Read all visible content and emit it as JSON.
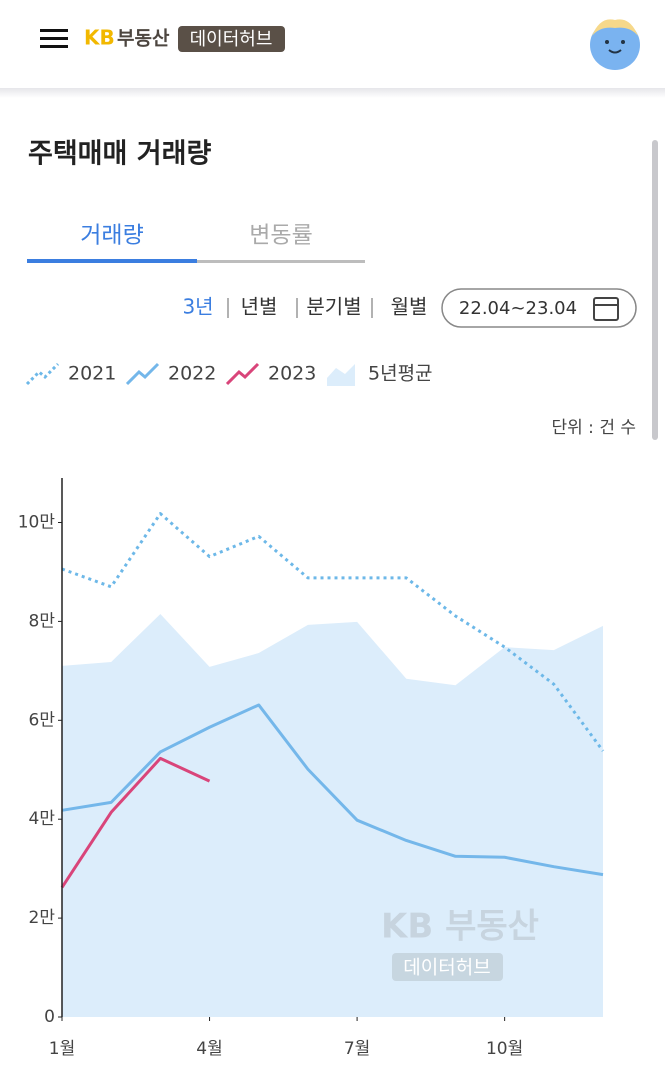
{
  "header": {
    "logo_kb": "KB",
    "logo_name": "부동산",
    "logo_badge": "데이터허브"
  },
  "title": "주택매매 거래량",
  "tabs": [
    "거래량",
    "변동률"
  ],
  "active_tab": 0,
  "periods": [
    "3년",
    "년별",
    "분기별",
    "월별"
  ],
  "active_period": 0,
  "date_range": "22.04~23.04",
  "unit": "단위 : 건 수",
  "chart_data": {
    "type": "line",
    "x": [
      1,
      2,
      3,
      4,
      5,
      6,
      7,
      8,
      9,
      10,
      11,
      12
    ],
    "xlim": [
      1,
      12
    ],
    "xticks": [
      {
        "value": 1,
        "label": "1월"
      },
      {
        "value": 4,
        "label": "4월"
      },
      {
        "value": 7,
        "label": "7월"
      },
      {
        "value": 10,
        "label": "10월"
      }
    ],
    "ylim": [
      0,
      109000
    ],
    "yticks": [
      0,
      {
        "value": 20000,
        "label": "2만"
      },
      {
        "value": 40000,
        "label": "4만"
      },
      {
        "value": 60000,
        "label": "6만"
      },
      {
        "value": 80000,
        "label": "8만"
      },
      {
        "value": 100000,
        "label": "10만"
      }
    ],
    "series": [
      {
        "name": "2021",
        "color": "#6db8e8",
        "style": "dotted",
        "values": [
          90600,
          87000,
          101800,
          93100,
          97200,
          88800,
          88800,
          88800,
          81100,
          74800,
          67300,
          53800
        ]
      },
      {
        "name": "2022",
        "color": "#74b7ea",
        "style": "solid",
        "values": [
          41800,
          43400,
          53600,
          58600,
          63100,
          50100,
          39800,
          35700,
          32500,
          32300,
          30400,
          28800
        ]
      },
      {
        "name": "2023",
        "color": "#d9457a",
        "style": "solid",
        "values": [
          26200,
          41400,
          52300,
          47700,
          null,
          null,
          null,
          null,
          null,
          null,
          null,
          null
        ]
      },
      {
        "name": "5년평균",
        "color": "#dcedfb",
        "style": "area",
        "values": [
          71000,
          71800,
          81500,
          70800,
          73600,
          79300,
          79900,
          68400,
          67100,
          74800,
          74200,
          79100
        ]
      }
    ],
    "watermark": {
      "brand": "KB 부동산",
      "badge": "데이터허브"
    }
  }
}
